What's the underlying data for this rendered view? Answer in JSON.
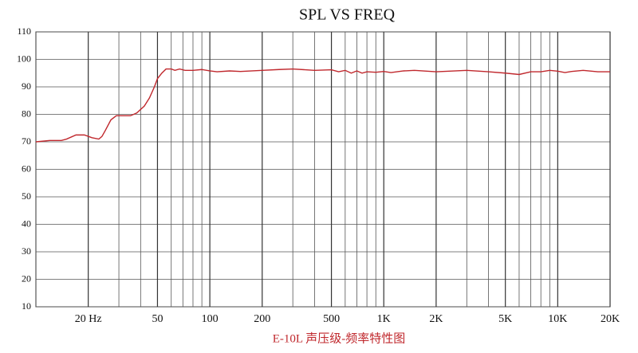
{
  "chart_data": {
    "type": "line",
    "title": "SPL VS FREQ",
    "caption": "E-10L 声压级-频率特性图",
    "log_x": true,
    "grid": true,
    "xlim": [
      10,
      20000
    ],
    "ylim": [
      10,
      110
    ],
    "yticks": [
      10,
      20,
      30,
      40,
      50,
      60,
      70,
      80,
      90,
      100,
      110
    ],
    "xticks": [
      {
        "value": 20,
        "label": "20 Hz"
      },
      50,
      100,
      200,
      500,
      {
        "value": 1000,
        "label": "1K"
      },
      {
        "value": 2000,
        "label": "2K"
      },
      {
        "value": 5000,
        "label": "5K"
      },
      {
        "value": 10000,
        "label": "10K"
      },
      {
        "value": 20000,
        "label": "20K"
      }
    ],
    "xminor": [
      30,
      40,
      60,
      70,
      80,
      90,
      300,
      400,
      600,
      700,
      800,
      900,
      3000,
      4000,
      6000,
      7000,
      8000,
      9000
    ],
    "series": [
      {
        "color": "#c0282d",
        "x": [
          10,
          12,
          14,
          15,
          17,
          19,
          21,
          23,
          24,
          25,
          27,
          29,
          32,
          35,
          38,
          42,
          45,
          48,
          50,
          53,
          56,
          60,
          63,
          67,
          72,
          80,
          90,
          100,
          110,
          130,
          150,
          200,
          250,
          300,
          400,
          500,
          550,
          600,
          650,
          700,
          750,
          800,
          900,
          1000,
          1100,
          1300,
          1500,
          2000,
          3000,
          4000,
          5000,
          6000,
          7000,
          8000,
          9000,
          10000,
          11000,
          12000,
          14000,
          17000,
          20000
        ],
        "values": [
          70,
          70.5,
          70.5,
          71,
          72.5,
          72.5,
          71.5,
          71,
          72,
          74,
          78,
          79.5,
          79.5,
          79.5,
          80.5,
          83,
          86,
          90,
          93,
          95,
          96.5,
          96.5,
          96,
          96.5,
          96,
          96,
          96.3,
          95.8,
          95.5,
          95.8,
          95.6,
          96,
          96.3,
          96.5,
          96,
          96.2,
          95.5,
          96,
          95,
          95.8,
          95,
          95.5,
          95.3,
          95.6,
          95.2,
          95.8,
          96,
          95.5,
          96,
          95.5,
          95,
          94.5,
          95.5,
          95.5,
          96,
          95.7,
          95.2,
          95.6,
          96,
          95.5,
          95.5
        ]
      }
    ]
  }
}
